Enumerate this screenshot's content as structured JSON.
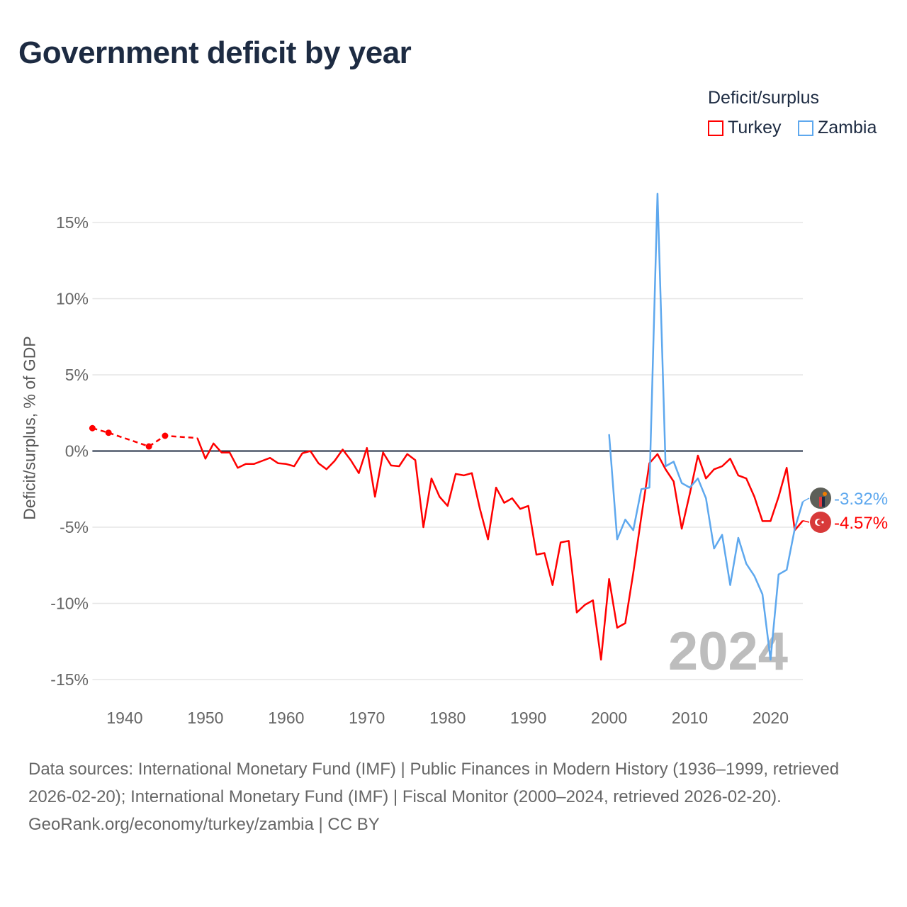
{
  "title": "Government deficit by year",
  "legend": {
    "title": "Deficit/surplus",
    "items": [
      {
        "label": "Turkey",
        "color": "#ff0000"
      },
      {
        "label": "Zambia",
        "color": "#5ea8ee"
      }
    ]
  },
  "footer": {
    "sources": "Data sources: International Monetary Fund (IMF) | Public Finances in Modern History (1936–1999, retrieved 2026-02-20); International Monetary Fund (IMF) | Fiscal Monitor (2000–2024, retrieved 2026-02-20).",
    "credit": "GeoRank.org/economy/turkey/zambia | CC BY"
  },
  "chart_data": {
    "type": "line",
    "title": "Government deficit by year",
    "ylabel": "Deficit/surplus, % of GDP",
    "xlabel": "",
    "xlim": [
      1936,
      2024
    ],
    "ylim": [
      -15,
      15
    ],
    "x_ticks": [
      1940,
      1950,
      1960,
      1970,
      1980,
      1990,
      2000,
      2010,
      2020
    ],
    "y_ticks": [
      {
        "v": 15,
        "label": "15%"
      },
      {
        "v": 10,
        "label": "10%"
      },
      {
        "v": 5,
        "label": "5%"
      },
      {
        "v": 0,
        "label": "0%"
      },
      {
        "v": -5,
        "label": "-5%"
      },
      {
        "v": -10,
        "label": "-10%"
      },
      {
        "v": -15,
        "label": "-15%"
      }
    ],
    "year_watermark": "2024",
    "series": [
      {
        "name": "Turkey",
        "color": "#ff0000",
        "end_label": "-4.57%",
        "sparse": [
          [
            1936,
            1.5
          ],
          [
            1938,
            1.2
          ],
          [
            1943,
            0.3
          ],
          [
            1945,
            1.0
          ],
          [
            1949,
            0.85
          ]
        ],
        "points": [
          [
            1949,
            0.85
          ],
          [
            1950,
            -0.5
          ],
          [
            1951,
            0.5
          ],
          [
            1952,
            -0.1
          ],
          [
            1953,
            -0.1
          ],
          [
            1954,
            -1.1
          ],
          [
            1955,
            -0.85
          ],
          [
            1956,
            -0.85
          ],
          [
            1957,
            -0.65
          ],
          [
            1958,
            -0.45
          ],
          [
            1959,
            -0.8
          ],
          [
            1960,
            -0.85
          ],
          [
            1961,
            -1.0
          ],
          [
            1962,
            -0.15
          ],
          [
            1963,
            0
          ],
          [
            1964,
            -0.8
          ],
          [
            1965,
            -1.2
          ],
          [
            1966,
            -0.65
          ],
          [
            1967,
            0.1
          ],
          [
            1968,
            -0.6
          ],
          [
            1969,
            -1.45
          ],
          [
            1970,
            0.2
          ],
          [
            1971,
            -3.0
          ],
          [
            1972,
            -0.1
          ],
          [
            1973,
            -0.95
          ],
          [
            1974,
            -1.0
          ],
          [
            1975,
            -0.2
          ],
          [
            1976,
            -0.6
          ],
          [
            1977,
            -5.0
          ],
          [
            1978,
            -1.8
          ],
          [
            1979,
            -3.0
          ],
          [
            1980,
            -3.6
          ],
          [
            1981,
            -1.5
          ],
          [
            1982,
            -1.6
          ],
          [
            1983,
            -1.45
          ],
          [
            1984,
            -3.8
          ],
          [
            1985,
            -5.8
          ],
          [
            1986,
            -2.4
          ],
          [
            1987,
            -3.4
          ],
          [
            1988,
            -3.1
          ],
          [
            1989,
            -3.8
          ],
          [
            1990,
            -3.6
          ],
          [
            1991,
            -6.8
          ],
          [
            1992,
            -6.7
          ],
          [
            1993,
            -8.8
          ],
          [
            1994,
            -6.0
          ],
          [
            1995,
            -5.9
          ],
          [
            1996,
            -10.6
          ],
          [
            1997,
            -10.1
          ],
          [
            1998,
            -9.8
          ],
          [
            1999,
            -13.7
          ],
          [
            2000,
            -8.4
          ],
          [
            2001,
            -11.6
          ],
          [
            2002,
            -11.3
          ],
          [
            2003,
            -8.0
          ],
          [
            2004,
            -4.3
          ],
          [
            2005,
            -0.8
          ],
          [
            2006,
            -0.2
          ],
          [
            2007,
            -1.2
          ],
          [
            2008,
            -2.0
          ],
          [
            2009,
            -5.1
          ],
          [
            2010,
            -2.8
          ],
          [
            2011,
            -0.3
          ],
          [
            2012,
            -1.8
          ],
          [
            2013,
            -1.2
          ],
          [
            2014,
            -1.0
          ],
          [
            2015,
            -0.5
          ],
          [
            2016,
            -1.6
          ],
          [
            2017,
            -1.8
          ],
          [
            2018,
            -3.0
          ],
          [
            2019,
            -4.6
          ],
          [
            2020,
            -4.6
          ],
          [
            2021,
            -3.0
          ],
          [
            2022,
            -1.1
          ],
          [
            2023,
            -5.2
          ],
          [
            2024,
            -4.57
          ]
        ]
      },
      {
        "name": "Zambia",
        "color": "#5ea8ee",
        "end_label": "-3.32%",
        "points": [
          [
            2000,
            1.1
          ],
          [
            2001,
            -5.8
          ],
          [
            2002,
            -4.5
          ],
          [
            2003,
            -5.2
          ],
          [
            2004,
            -2.5
          ],
          [
            2005,
            -2.4
          ],
          [
            2006,
            16.9
          ],
          [
            2007,
            -1.0
          ],
          [
            2008,
            -0.7
          ],
          [
            2009,
            -2.1
          ],
          [
            2010,
            -2.4
          ],
          [
            2011,
            -1.8
          ],
          [
            2012,
            -3.1
          ],
          [
            2013,
            -6.4
          ],
          [
            2014,
            -5.5
          ],
          [
            2015,
            -8.8
          ],
          [
            2016,
            -5.7
          ],
          [
            2017,
            -7.4
          ],
          [
            2018,
            -8.2
          ],
          [
            2019,
            -9.4
          ],
          [
            2020,
            -13.7
          ],
          [
            2021,
            -8.1
          ],
          [
            2022,
            -7.8
          ],
          [
            2023,
            -5.1
          ],
          [
            2024,
            -3.32
          ]
        ]
      }
    ]
  }
}
